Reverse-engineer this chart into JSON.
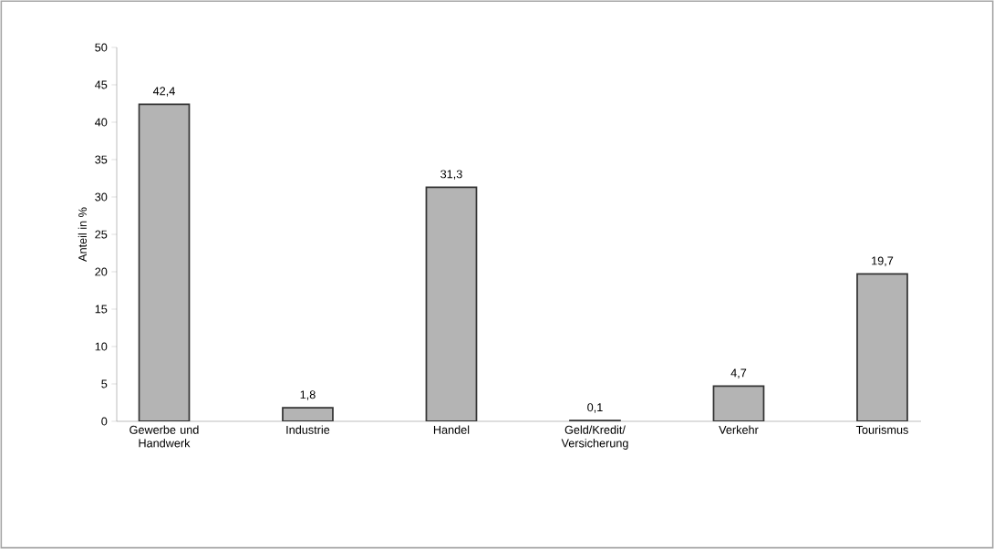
{
  "chart_data": {
    "type": "bar",
    "ylabel": "Anteil in %",
    "categories": [
      "Gewerbe und Handwerk",
      "Industrie",
      "Handel",
      "Geld/Kredit/ Versicherung",
      "Verkehr",
      "Tourismus"
    ],
    "values": [
      42.4,
      1.8,
      31.3,
      0.1,
      4.7,
      19.7
    ],
    "value_labels": [
      "42,4",
      "1,8",
      "31,3",
      "0,1",
      "4,7",
      "19,7"
    ],
    "color": "#b4b4b4",
    "ylim": [
      0,
      50
    ],
    "yticks": [
      0,
      5,
      10,
      15,
      20,
      25,
      30,
      35,
      40,
      45,
      50
    ],
    "grid": false
  }
}
